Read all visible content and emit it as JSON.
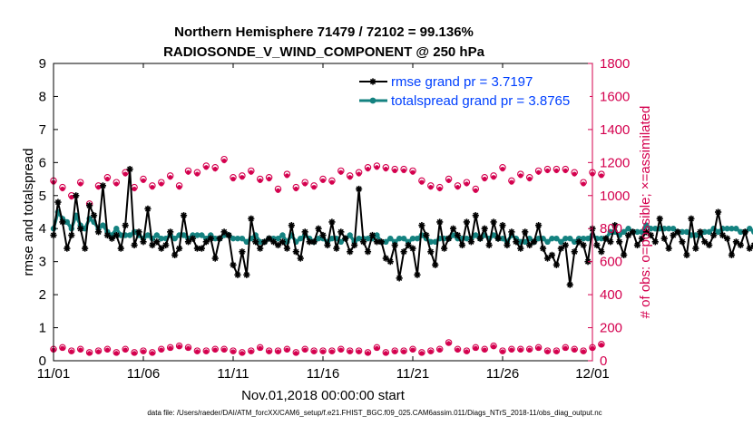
{
  "colors": {
    "rmse": "#000000",
    "spread": "#148280",
    "obs": "#d4004e",
    "legend_text": "#0040ff",
    "axis": "#000000"
  },
  "chart_data": {
    "type": "line",
    "title": "Northern Hemisphere 71479 / 72102 = 99.136%",
    "subtitle": "RADIOSONDE_V_WIND_COMPONENT @ 250 hPa",
    "xlabel": "Nov.01,2018 00:00:00 start",
    "ylabel_left": "rmse and totalspread",
    "ylabel_right": "# of obs: o=possible; ×=assimilated",
    "footnote": "data file: /Users/raeder/DAI/ATM_forcXX/CAM6_setup/f.e21.FHIST_BGC.f09_025.CAM6assim.011/Diags_NTrS_2018-11/obs_diag_output.nc",
    "xlim": [
      0,
      30
    ],
    "ylim_left": [
      0,
      9
    ],
    "ylim_right": [
      0,
      1800
    ],
    "x_ticks": [
      0,
      5,
      10,
      15,
      20,
      25,
      30
    ],
    "x_tick_labels": [
      "11/01",
      "11/06",
      "11/11",
      "11/16",
      "11/21",
      "11/26",
      "12/01"
    ],
    "y_left_ticks": [
      "0",
      "1",
      "2",
      "3",
      "4",
      "5",
      "6",
      "7",
      "8",
      "9"
    ],
    "y_right_ticks": [
      "0",
      "200",
      "400",
      "600",
      "800",
      "1000",
      "1200",
      "1400",
      "1600",
      "1800"
    ],
    "legend": [
      {
        "label": "rmse grand pr = 3.7197"
      },
      {
        "label": "totalspread grand pr = 3.8765"
      }
    ],
    "x_step": 0.25,
    "series": [
      {
        "name": "rmse",
        "values": [
          3.8,
          4.8,
          4.2,
          3.4,
          3.8,
          5.0,
          4.0,
          3.4,
          4.7,
          4.4,
          3.9,
          5.3,
          3.8,
          3.7,
          3.8,
          3.4,
          4.1,
          5.8,
          3.5,
          3.9,
          3.6,
          4.6,
          3.5,
          3.6,
          3.4,
          3.5,
          3.9,
          3.2,
          3.4,
          4.4,
          3.6,
          3.7,
          3.4,
          3.4,
          3.6,
          3.7,
          3.1,
          3.7,
          3.9,
          3.8,
          2.9,
          2.6,
          3.3,
          2.6,
          4.3,
          3.6,
          3.4,
          3.6,
          3.7,
          3.6,
          3.5,
          3.6,
          3.4,
          4.1,
          3.3,
          3.1,
          3.9,
          3.6,
          3.6,
          4.0,
          3.8,
          3.5,
          4.2,
          3.4,
          3.9,
          3.7,
          3.3,
          3.5,
          5.2,
          3.6,
          3.3,
          3.8,
          3.6,
          3.6,
          3.1,
          3.0,
          3.5,
          2.5,
          3.3,
          3.5,
          3.4,
          2.6,
          4.1,
          3.8,
          3.3,
          2.9,
          4.2,
          3.4,
          3.7,
          4.0,
          3.8,
          3.5,
          4.2,
          3.6,
          4.4,
          3.7,
          4.0,
          3.5,
          4.2,
          3.7,
          4.1,
          3.5,
          3.9,
          3.6,
          3.4,
          3.9,
          3.5,
          3.6,
          4.1,
          3.4,
          3.1,
          3.2,
          2.9,
          3.4,
          3.5,
          2.3,
          3.3,
          3.6,
          3.5,
          3.0,
          4.0,
          3.5,
          3.3,
          3.7,
          3.6,
          4.1,
          3.6,
          3.2,
          3.8,
          3.9,
          3.5,
          3.7,
          3.9,
          3.8,
          3.6,
          4.3,
          3.7,
          3.4,
          3.8,
          3.9,
          3.6,
          3.2,
          4.3,
          3.4,
          3.9,
          3.6,
          3.5,
          3.8,
          4.5,
          3.8,
          3.7,
          3.2,
          3.6,
          3.5,
          3.9,
          3.4,
          3.5,
          2.8,
          3.4,
          2.9,
          3.6,
          2.8,
          3.4,
          3.7,
          4.3,
          3.6,
          3.8,
          4.8,
          4.6,
          3.7,
          5.5,
          3.9,
          3.7,
          5.2,
          3.5,
          4.0,
          3.3,
          3.9,
          3.8,
          4.0,
          3.3,
          4.2,
          4.3
        ]
      },
      {
        "name": "totalspread",
        "values": [
          4.0,
          4.5,
          4.3,
          4.2,
          4.0,
          4.4,
          4.1,
          4.0,
          4.3,
          4.2,
          4.0,
          4.1,
          3.9,
          3.8,
          4.0,
          3.8,
          3.8,
          3.8,
          3.9,
          3.8,
          3.7,
          3.8,
          3.7,
          3.8,
          3.7,
          3.7,
          3.8,
          3.7,
          3.8,
          3.8,
          3.7,
          3.8,
          3.8,
          3.8,
          3.7,
          3.8,
          3.7,
          3.7,
          3.8,
          3.8,
          3.7,
          3.7,
          3.7,
          3.6,
          3.7,
          3.8,
          3.6,
          3.6,
          3.7,
          3.7,
          3.7,
          3.8,
          3.6,
          3.8,
          3.6,
          3.7,
          3.8,
          3.7,
          3.6,
          3.7,
          3.7,
          3.6,
          3.7,
          3.7,
          3.6,
          3.7,
          3.8,
          3.6,
          3.7,
          3.7,
          3.7,
          3.7,
          3.8,
          3.6,
          3.6,
          3.7,
          3.6,
          3.7,
          3.7,
          3.6,
          3.7,
          3.7,
          3.8,
          3.7,
          3.6,
          3.6,
          3.7,
          3.7,
          3.7,
          3.8,
          3.7,
          3.7,
          3.7,
          3.7,
          3.8,
          3.7,
          3.8,
          3.7,
          3.8,
          3.7,
          3.7,
          3.6,
          3.8,
          3.7,
          3.6,
          3.6,
          3.7,
          3.6,
          3.7,
          3.7,
          3.6,
          3.7,
          3.7,
          3.6,
          3.7,
          3.7,
          3.6,
          3.7,
          3.7,
          3.7,
          3.8,
          3.7,
          3.7,
          3.7,
          3.9,
          3.9,
          3.8,
          3.9,
          4.0,
          3.9,
          3.9,
          3.9,
          4.1,
          4.0,
          4.0,
          4.0,
          4.0,
          4.0,
          4.0,
          3.9,
          3.9,
          3.9,
          3.8,
          3.8,
          3.8,
          3.9,
          3.9,
          4.0,
          3.9,
          4.0,
          4.0,
          4.0,
          4.0,
          3.9,
          3.9,
          4.0,
          3.9,
          4.0,
          3.9,
          4.0,
          4.1,
          4.2,
          4.1,
          4.0,
          4.2,
          4.3,
          4.2,
          3.8,
          4.5,
          4.1,
          4.0,
          4.0,
          3.8,
          3.8,
          4.1,
          4.2,
          4.0,
          4.1,
          5.6,
          5.7
        ]
      },
      {
        "name": "obs_possible_high",
        "x_step": 0.5,
        "values": [
          1090,
          1050,
          1000,
          1080,
          950,
          1060,
          1110,
          1080,
          1140,
          1050,
          1100,
          1060,
          1080,
          1120,
          1060,
          1150,
          1140,
          1180,
          1170,
          1220,
          1110,
          1120,
          1150,
          1100,
          1110,
          1040,
          1130,
          1050,
          1080,
          1060,
          1100,
          1090,
          1150,
          1120,
          1140,
          1170,
          1180,
          1170,
          1160,
          1160,
          1150,
          1090,
          1060,
          1050,
          1100,
          1060,
          1080,
          1040,
          1110,
          1120,
          1170,
          1090,
          1130,
          1110,
          1150,
          1160,
          1160,
          1160,
          1140,
          1080,
          1140,
          1130
        ]
      },
      {
        "name": "obs_assimilated_high",
        "x_step": 0.5,
        "values": [
          1080,
          1040,
          990,
          1070,
          940,
          1050,
          1100,
          1070,
          1130,
          1040,
          1090,
          1050,
          1070,
          1110,
          1050,
          1140,
          1130,
          1170,
          1160,
          1210,
          1100,
          1110,
          1140,
          1090,
          1100,
          1030,
          1120,
          1040,
          1070,
          1050,
          1090,
          1080,
          1140,
          1110,
          1130,
          1160,
          1170,
          1160,
          1150,
          1150,
          1140,
          1080,
          1050,
          1040,
          1090,
          1050,
          1070,
          1030,
          1100,
          1110,
          1160,
          1080,
          1120,
          1100,
          1140,
          1150,
          1150,
          1150,
          1130,
          1070,
          1130,
          1120
        ]
      },
      {
        "name": "obs_possible_low",
        "x_step": 0.5,
        "values": [
          70,
          80,
          60,
          70,
          50,
          60,
          70,
          50,
          70,
          50,
          60,
          50,
          70,
          80,
          90,
          80,
          60,
          60,
          70,
          70,
          60,
          50,
          60,
          80,
          60,
          60,
          70,
          50,
          70,
          60,
          60,
          60,
          70,
          60,
          60,
          50,
          80,
          50,
          60,
          60,
          70,
          50,
          60,
          70,
          110,
          70,
          60,
          80,
          70,
          90,
          60,
          70,
          70,
          70,
          80,
          60,
          60,
          80,
          70,
          60,
          80,
          100
        ]
      },
      {
        "name": "obs_assimilated_low",
        "x_step": 0.5,
        "values": [
          65,
          75,
          55,
          65,
          45,
          55,
          65,
          45,
          65,
          45,
          55,
          45,
          65,
          75,
          85,
          75,
          55,
          55,
          65,
          65,
          55,
          45,
          55,
          75,
          55,
          55,
          65,
          45,
          65,
          55,
          55,
          55,
          65,
          55,
          55,
          45,
          75,
          45,
          55,
          55,
          65,
          45,
          55,
          65,
          105,
          65,
          55,
          75,
          65,
          85,
          55,
          65,
          65,
          65,
          75,
          55,
          55,
          75,
          65,
          55,
          75,
          95
        ]
      }
    ]
  }
}
